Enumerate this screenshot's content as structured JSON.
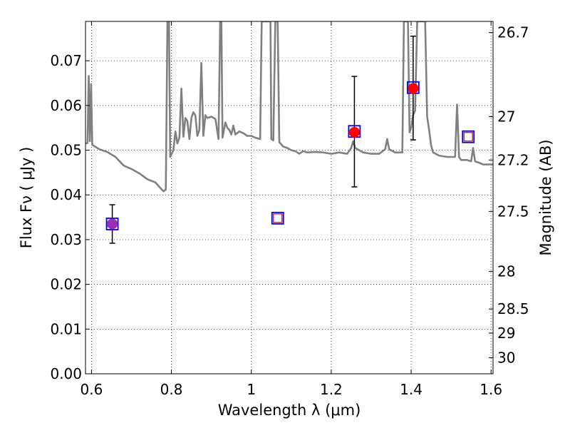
{
  "chart_data": {
    "type": "scatter",
    "title": "",
    "xlabel": "Wavelength  λ (μm)",
    "ylabel": "Flux  Fν  ( μJy )",
    "y2label": "Magnitude (AB)",
    "xlim": [
      0.585,
      1.605
    ],
    "ylim": [
      0.0,
      0.0788
    ],
    "grid": true,
    "x_ticks": [
      {
        "value": 0.6,
        "label": "0.6"
      },
      {
        "value": 0.8,
        "label": "0.8"
      },
      {
        "value": 1.0,
        "label": "1"
      },
      {
        "value": 1.2,
        "label": "1.2"
      },
      {
        "value": 1.4,
        "label": "1.4"
      },
      {
        "value": 1.6,
        "label": "1.6"
      }
    ],
    "y_ticks": [
      {
        "value": 0.0,
        "label": "0.00"
      },
      {
        "value": 0.01,
        "label": "0.01"
      },
      {
        "value": 0.02,
        "label": "0.02"
      },
      {
        "value": 0.03,
        "label": "0.03"
      },
      {
        "value": 0.04,
        "label": "0.04"
      },
      {
        "value": 0.05,
        "label": "0.05"
      },
      {
        "value": 0.06,
        "label": "0.06"
      },
      {
        "value": 0.07,
        "label": "0.07"
      }
    ],
    "y2_ticks": [
      {
        "flux": 0.0763,
        "label": "26.7"
      },
      {
        "flux": 0.0575,
        "label": "27"
      },
      {
        "flux": 0.0478,
        "label": "27.2"
      },
      {
        "flux": 0.0363,
        "label": "27.5"
      },
      {
        "flux": 0.0229,
        "label": "28"
      },
      {
        "flux": 0.0145,
        "label": "28.5"
      },
      {
        "flux": 0.0091,
        "label": "29"
      },
      {
        "flux": 0.0036,
        "label": "30"
      }
    ],
    "series": [
      {
        "kind": "line",
        "color": "#808080",
        "points": [
          [
            0.585,
            0.0515
          ],
          [
            0.59,
            0.0516
          ],
          [
            0.593,
            0.0666
          ],
          [
            0.596,
            0.052
          ],
          [
            0.599,
            0.0648
          ],
          [
            0.602,
            0.0512
          ],
          [
            0.62,
            0.0502
          ],
          [
            0.64,
            0.0496
          ],
          [
            0.66,
            0.0485
          ],
          [
            0.68,
            0.0466
          ],
          [
            0.7,
            0.0458
          ],
          [
            0.72,
            0.0448
          ],
          [
            0.74,
            0.0435
          ],
          [
            0.76,
            0.0428
          ],
          [
            0.77,
            0.0418
          ],
          [
            0.78,
            0.0408
          ],
          [
            0.786,
            0.0412
          ],
          [
            0.79,
            0.0788
          ],
          [
            0.794,
            0.0788
          ],
          [
            0.797,
            0.0485
          ],
          [
            0.805,
            0.05
          ],
          [
            0.81,
            0.0542
          ],
          [
            0.815,
            0.0515
          ],
          [
            0.82,
            0.0528
          ],
          [
            0.825,
            0.0638
          ],
          [
            0.83,
            0.053
          ],
          [
            0.835,
            0.0572
          ],
          [
            0.84,
            0.0565
          ],
          [
            0.845,
            0.0525
          ],
          [
            0.85,
            0.0572
          ],
          [
            0.855,
            0.0585
          ],
          [
            0.86,
            0.0578
          ],
          [
            0.865,
            0.0532
          ],
          [
            0.87,
            0.0545
          ],
          [
            0.875,
            0.0695
          ],
          [
            0.88,
            0.0532
          ],
          [
            0.885,
            0.0578
          ],
          [
            0.89,
            0.0572
          ],
          [
            0.9,
            0.0575
          ],
          [
            0.91,
            0.057
          ],
          [
            0.918,
            0.0525
          ],
          [
            0.922,
            0.0788
          ],
          [
            0.925,
            0.0788
          ],
          [
            0.928,
            0.0528
          ],
          [
            0.935,
            0.0562
          ],
          [
            0.94,
            0.055
          ],
          [
            0.945,
            0.0545
          ],
          [
            0.95,
            0.0535
          ],
          [
            0.955,
            0.0555
          ],
          [
            0.96,
            0.0535
          ],
          [
            0.97,
            0.0542
          ],
          [
            0.98,
            0.0538
          ],
          [
            0.99,
            0.0532
          ],
          [
            1.0,
            0.0532
          ],
          [
            1.01,
            0.0528
          ],
          [
            1.022,
            0.0525
          ],
          [
            1.026,
            0.0788
          ],
          [
            1.048,
            0.0788
          ],
          [
            1.05,
            0.0525
          ],
          [
            1.055,
            0.0522
          ],
          [
            1.06,
            0.0788
          ],
          [
            1.066,
            0.0788
          ],
          [
            1.07,
            0.0518
          ],
          [
            1.08,
            0.0508
          ],
          [
            1.09,
            0.0505
          ],
          [
            1.1,
            0.05
          ],
          [
            1.11,
            0.0498
          ],
          [
            1.12,
            0.0492
          ],
          [
            1.13,
            0.0498
          ],
          [
            1.14,
            0.0495
          ],
          [
            1.16,
            0.0496
          ],
          [
            1.18,
            0.0495
          ],
          [
            1.2,
            0.0492
          ],
          [
            1.22,
            0.0495
          ],
          [
            1.24,
            0.0492
          ],
          [
            1.25,
            0.0505
          ],
          [
            1.255,
            0.052
          ],
          [
            1.26,
            0.0505
          ],
          [
            1.28,
            0.0495
          ],
          [
            1.3,
            0.0492
          ],
          [
            1.32,
            0.0492
          ],
          [
            1.335,
            0.0502
          ],
          [
            1.34,
            0.0525
          ],
          [
            1.345,
            0.0502
          ],
          [
            1.36,
            0.0495
          ],
          [
            1.37,
            0.0495
          ],
          [
            1.378,
            0.0495
          ],
          [
            1.382,
            0.0788
          ],
          [
            1.392,
            0.0788
          ],
          [
            1.396,
            0.054
          ],
          [
            1.4,
            0.055
          ],
          [
            1.405,
            0.0578
          ],
          [
            1.41,
            0.0588
          ],
          [
            1.415,
            0.0788
          ],
          [
            1.435,
            0.0788
          ],
          [
            1.44,
            0.0575
          ],
          [
            1.445,
            0.0545
          ],
          [
            1.45,
            0.051
          ],
          [
            1.455,
            0.0495
          ],
          [
            1.47,
            0.0488
          ],
          [
            1.49,
            0.0485
          ],
          [
            1.51,
            0.0485
          ],
          [
            1.515,
            0.0602
          ],
          [
            1.52,
            0.0485
          ],
          [
            1.525,
            0.0478
          ],
          [
            1.54,
            0.0478
          ],
          [
            1.55,
            0.0475
          ],
          [
            1.555,
            0.0505
          ],
          [
            1.56,
            0.0475
          ],
          [
            1.57,
            0.0472
          ],
          [
            1.58,
            0.0468
          ],
          [
            1.605,
            0.0468
          ]
        ]
      },
      {
        "kind": "model_squares",
        "points": [
          {
            "x": 0.652,
            "y": 0.0335
          },
          {
            "x": 1.066,
            "y": 0.0348
          },
          {
            "x": 1.258,
            "y": 0.0542
          },
          {
            "x": 1.405,
            "y": 0.064
          },
          {
            "x": 1.543,
            "y": 0.053
          }
        ]
      },
      {
        "kind": "observed",
        "points": [
          {
            "x": 0.652,
            "y": 0.0335,
            "ylo": 0.0292,
            "yhi": 0.0378,
            "color": "#9b30b0",
            "marker": "circle"
          },
          {
            "x": 1.066,
            "y": 0.0348,
            "color": "#ff0000",
            "marker": "open-square"
          },
          {
            "x": 1.258,
            "y": 0.054,
            "ylo": 0.0418,
            "yhi": 0.0665,
            "color": "#ff0000",
            "marker": "circle"
          },
          {
            "x": 1.405,
            "y": 0.0638,
            "ylo": 0.0523,
            "yhi": 0.0755,
            "color": "#ff0000",
            "marker": "circle"
          },
          {
            "x": 1.543,
            "y": 0.053,
            "color": "#ff0000",
            "marker": "open-square"
          }
        ]
      }
    ]
  }
}
